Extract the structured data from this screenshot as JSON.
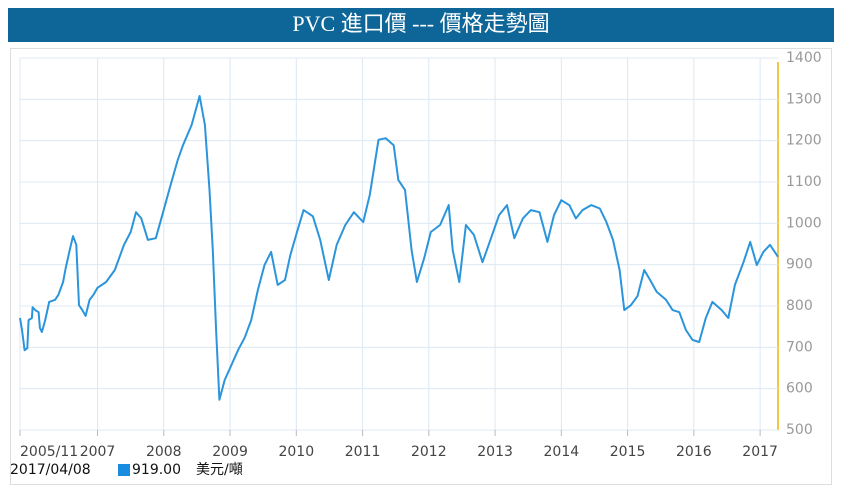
{
  "chart_data": {
    "type": "line",
    "title": "PVC 進口價 --- 價格走勢圖",
    "x": [
      2005.83,
      2005.86,
      2005.9,
      2005.94,
      2005.96,
      2006.01,
      2006.02,
      2006.06,
      2006.11,
      2006.13,
      2006.16,
      2006.21,
      2006.27,
      2006.36,
      2006.41,
      2006.48,
      2006.52,
      2006.58,
      2006.63,
      2006.68,
      2006.72,
      2006.77,
      2006.82,
      2006.88,
      2006.94,
      2007.0,
      2007.13,
      2007.26,
      2007.4,
      2007.5,
      2007.58,
      2007.66,
      2007.76,
      2007.88,
      2007.99,
      2008.09,
      2008.21,
      2008.29,
      2008.42,
      2008.54,
      2008.62,
      2008.69,
      2008.74,
      2008.79,
      2008.84,
      2008.92,
      2009.02,
      2009.12,
      2009.22,
      2009.32,
      2009.42,
      2009.52,
      2009.62,
      2009.72,
      2009.83,
      2009.91,
      2010.01,
      2010.11,
      2010.25,
      2010.36,
      2010.49,
      2010.61,
      2010.74,
      2010.87,
      2011.01,
      2011.11,
      2011.24,
      2011.35,
      2011.47,
      2011.54,
      2011.64,
      2011.74,
      2011.82,
      2011.93,
      2012.03,
      2012.17,
      2012.3,
      2012.36,
      2012.46,
      2012.56,
      2012.68,
      2012.81,
      2012.93,
      2013.06,
      2013.18,
      2013.29,
      2013.42,
      2013.54,
      2013.67,
      2013.79,
      2013.89,
      2014.0,
      2014.12,
      2014.22,
      2014.32,
      2014.45,
      2014.58,
      2014.68,
      2014.78,
      2014.88,
      2014.95,
      2015.05,
      2015.15,
      2015.25,
      2015.34,
      2015.44,
      2015.58,
      2015.68,
      2015.78,
      2015.88,
      2015.98,
      2016.08,
      2016.18,
      2016.28,
      2016.42,
      2016.52,
      2016.62,
      2016.75,
      2016.85,
      2016.95,
      2017.05,
      2017.15,
      2017.27
    ],
    "series": [
      {
        "color": "#2b95dc",
        "values": [
          771,
          742,
          693,
          698,
          766,
          771,
          797,
          790,
          785,
          747,
          737,
          766,
          810,
          815,
          827,
          858,
          892,
          935,
          969,
          948,
          802,
          790,
          776,
          815,
          827,
          844,
          858,
          887,
          948,
          979,
          1027,
          1012,
          960,
          964,
          1027,
          1085,
          1153,
          1189,
          1238,
          1308,
          1238,
          1081,
          935,
          742,
          573,
          621,
          657,
          693,
          723,
          766,
          839,
          899,
          931,
          851,
          863,
          923,
          979,
          1032,
          1017,
          960,
          863,
          948,
          996,
          1027,
          1003,
          1069,
          1202,
          1206,
          1189,
          1105,
          1081,
          935,
          858,
          916,
          979,
          996,
          1044,
          935,
          858,
          996,
          972,
          906,
          960,
          1020,
          1044,
          964,
          1012,
          1032,
          1027,
          955,
          1020,
          1056,
          1044,
          1012,
          1032,
          1044,
          1036,
          1003,
          960,
          887,
          790,
          802,
          824,
          887,
          863,
          834,
          815,
          790,
          785,
          742,
          718,
          713,
          771,
          810,
          790,
          771,
          851,
          906,
          955,
          899,
          931,
          948,
          919
        ]
      }
    ],
    "xlim": [
      2005.83,
      2017.27
    ],
    "xticks": [
      {
        "value": 2005.83,
        "label": "2005/11"
      },
      2007,
      2008,
      2009,
      2010,
      2011,
      2012,
      2013,
      2014,
      2015,
      2016,
      2017
    ],
    "ylim": [
      500,
      1400
    ],
    "yticks": [
      500,
      600,
      700,
      800,
      900,
      1000,
      1100,
      1200,
      1300,
      1400
    ],
    "grid": true,
    "current": {
      "date": "2017/04/08",
      "value": 919,
      "value_label": "919.00",
      "unit": "美元/噸",
      "color": "#1a8ce0"
    }
  }
}
